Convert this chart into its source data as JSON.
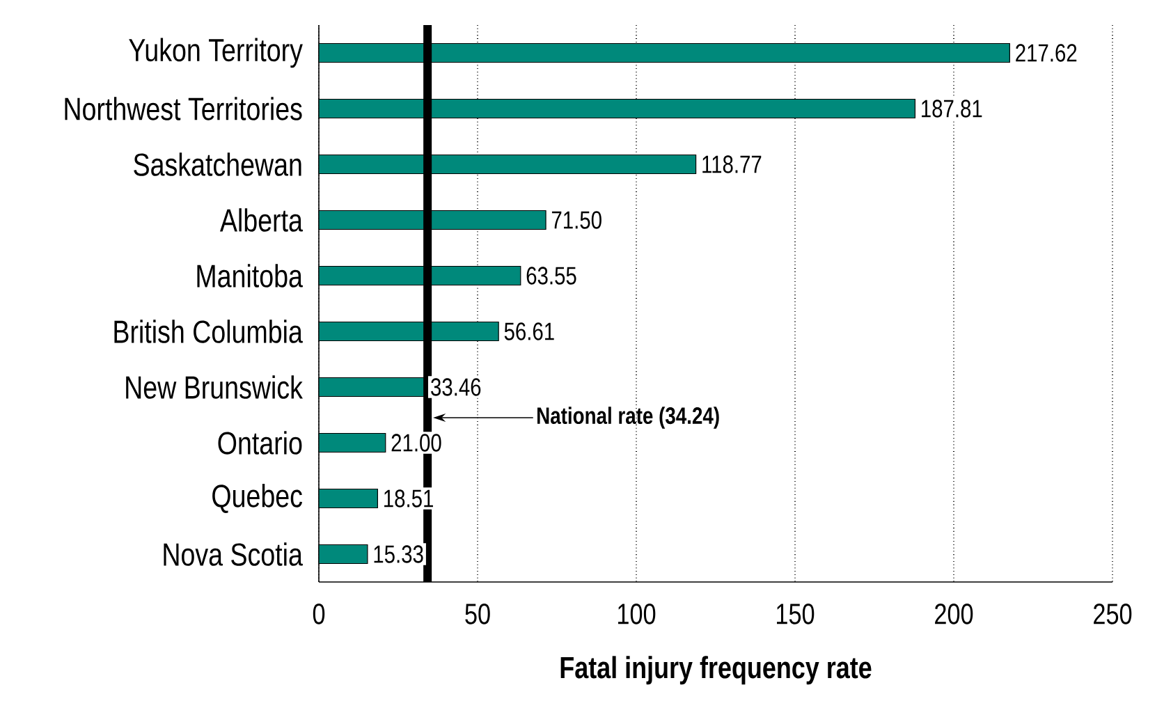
{
  "chart_data": {
    "type": "bar",
    "orientation": "horizontal",
    "xlabel": "Fatal injury frequency rate",
    "categories": [
      "Yukon Territory",
      "Northwest Territories",
      "Saskatchewan",
      "Alberta",
      "Manitoba",
      "British Columbia",
      "New Brunswick",
      "Ontario",
      "Quebec",
      "Nova Scotia"
    ],
    "values": [
      217.62,
      187.81,
      118.77,
      71.5,
      63.55,
      56.61,
      33.46,
      21.0,
      18.51,
      15.33
    ],
    "value_labels": [
      "217.62",
      "187.81",
      "118.77",
      "71.50",
      "63.55",
      "56.61",
      "33.46",
      "21.00",
      "18.51",
      "15.33"
    ],
    "color": "#00897b",
    "xlim": [
      0,
      250
    ],
    "xticks": [
      0,
      50,
      100,
      150,
      200,
      250
    ],
    "grid": "x",
    "ref_lines": [
      {
        "axis": "x",
        "value": 34.24,
        "label": "National rate (34.24)",
        "color": "#000000"
      }
    ]
  }
}
